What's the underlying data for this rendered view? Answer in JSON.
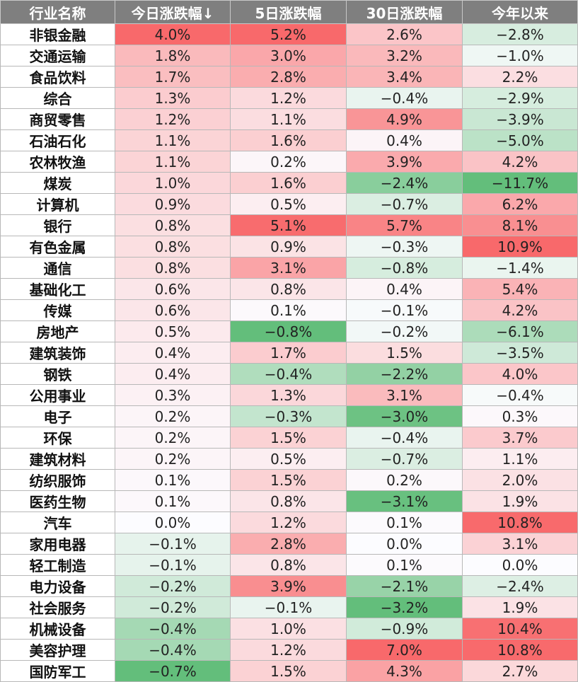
{
  "chart_data": {
    "type": "table",
    "columns": [
      "行业名称",
      "今日涨跌幅↓",
      "5日涨跌幅",
      "30日涨跌幅",
      "今年以来"
    ],
    "rows": [
      {
        "name": "非银金融",
        "values": [
          "4.0%",
          "5.2%",
          "2.6%",
          "−2.8%"
        ]
      },
      {
        "name": "交通运输",
        "values": [
          "1.8%",
          "3.0%",
          "3.2%",
          "−1.0%"
        ]
      },
      {
        "name": "食品饮料",
        "values": [
          "1.7%",
          "2.8%",
          "3.4%",
          "2.2%"
        ]
      },
      {
        "name": "综合",
        "values": [
          "1.3%",
          "1.2%",
          "−0.4%",
          "−2.9%"
        ]
      },
      {
        "name": "商贸零售",
        "values": [
          "1.2%",
          "1.1%",
          "4.9%",
          "−3.9%"
        ]
      },
      {
        "name": "石油石化",
        "values": [
          "1.1%",
          "1.6%",
          "0.4%",
          "−5.0%"
        ]
      },
      {
        "name": "农林牧渔",
        "values": [
          "1.1%",
          "0.2%",
          "3.9%",
          "4.2%"
        ]
      },
      {
        "name": "煤炭",
        "values": [
          "1.0%",
          "1.6%",
          "−2.4%",
          "−11.7%"
        ]
      },
      {
        "name": "计算机",
        "values": [
          "0.9%",
          "0.5%",
          "−0.7%",
          "6.2%"
        ]
      },
      {
        "name": "银行",
        "values": [
          "0.8%",
          "5.1%",
          "5.7%",
          "8.1%"
        ]
      },
      {
        "name": "有色金属",
        "values": [
          "0.8%",
          "0.9%",
          "−0.3%",
          "10.9%"
        ]
      },
      {
        "name": "通信",
        "values": [
          "0.8%",
          "3.1%",
          "−0.8%",
          "−1.4%"
        ]
      },
      {
        "name": "基础化工",
        "values": [
          "0.6%",
          "0.8%",
          "0.4%",
          "5.4%"
        ]
      },
      {
        "name": "传媒",
        "values": [
          "0.6%",
          "0.1%",
          "−0.1%",
          "4.2%"
        ]
      },
      {
        "name": "房地产",
        "values": [
          "0.5%",
          "−0.8%",
          "−0.2%",
          "−6.1%"
        ]
      },
      {
        "name": "建筑装饰",
        "values": [
          "0.4%",
          "1.7%",
          "1.5%",
          "−3.5%"
        ]
      },
      {
        "name": "钢铁",
        "values": [
          "0.4%",
          "−0.4%",
          "−2.2%",
          "4.0%"
        ]
      },
      {
        "name": "公用事业",
        "values": [
          "0.3%",
          "1.3%",
          "3.1%",
          "−0.4%"
        ]
      },
      {
        "name": "电子",
        "values": [
          "0.2%",
          "−0.3%",
          "−3.0%",
          "0.3%"
        ]
      },
      {
        "name": "环保",
        "values": [
          "0.2%",
          "1.5%",
          "−0.4%",
          "3.7%"
        ]
      },
      {
        "name": "建筑材料",
        "values": [
          "0.2%",
          "0.5%",
          "−0.7%",
          "1.1%"
        ]
      },
      {
        "name": "纺织服饰",
        "values": [
          "0.1%",
          "1.5%",
          "0.2%",
          "2.0%"
        ]
      },
      {
        "name": "医药生物",
        "values": [
          "0.1%",
          "0.8%",
          "−3.1%",
          "1.9%"
        ]
      },
      {
        "name": "汽车",
        "values": [
          "0.0%",
          "1.2%",
          "0.1%",
          "10.8%"
        ]
      },
      {
        "name": "家用电器",
        "values": [
          "−0.1%",
          "2.8%",
          "0.0%",
          "3.1%"
        ]
      },
      {
        "name": "轻工制造",
        "values": [
          "−0.1%",
          "0.8%",
          "0.1%",
          "0.0%"
        ]
      },
      {
        "name": "电力设备",
        "values": [
          "−0.2%",
          "3.9%",
          "−2.1%",
          "−2.4%"
        ]
      },
      {
        "name": "社会服务",
        "values": [
          "−0.2%",
          "−0.1%",
          "−3.2%",
          "1.9%"
        ]
      },
      {
        "name": "机械设备",
        "values": [
          "−0.4%",
          "1.0%",
          "−0.9%",
          "10.4%"
        ]
      },
      {
        "name": "美容护理",
        "values": [
          "−0.4%",
          "1.2%",
          "7.0%",
          "10.8%"
        ]
      },
      {
        "name": "国防军工",
        "values": [
          "−0.7%",
          "1.5%",
          "4.3%",
          "2.7%"
        ]
      }
    ],
    "colors": {
      "header_bg": "#7f7f7f",
      "header_text": "#ffffff",
      "positive_max": "#f8696b",
      "negative_max": "#63be7b",
      "neutral": "#fcfcff"
    }
  }
}
